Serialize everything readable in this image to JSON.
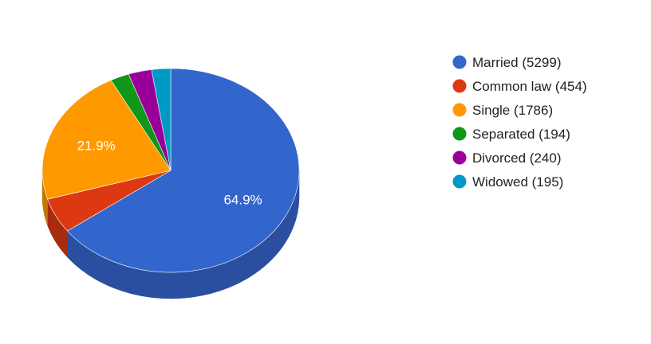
{
  "chart_data": {
    "type": "pie",
    "title": "",
    "three_d": true,
    "legend_position": "right",
    "slices": [
      {
        "name": "Married",
        "value": 5299,
        "color": "#3366cc",
        "side_color": "#2a4fa0",
        "legend_label": "Married (5299)",
        "pct_label": "64.9%"
      },
      {
        "name": "Common law",
        "value": 454,
        "color": "#dc3912",
        "side_color": "#a92c0e",
        "legend_label": "Common law (454)",
        "pct_label": ""
      },
      {
        "name": "Single",
        "value": 1786,
        "color": "#ff9900",
        "side_color": "#c47600",
        "legend_label": "Single (1786)",
        "pct_label": "21.9%"
      },
      {
        "name": "Separated",
        "value": 194,
        "color": "#109618",
        "side_color": "#0c7312",
        "legend_label": "Separated (194)",
        "pct_label": ""
      },
      {
        "name": "Divorced",
        "value": 240,
        "color": "#990099",
        "side_color": "#740074",
        "legend_label": "Divorced (240)",
        "pct_label": ""
      },
      {
        "name": "Widowed",
        "value": 195,
        "color": "#0099c6",
        "side_color": "#007598",
        "legend_label": "Widowed (195)",
        "pct_label": ""
      }
    ]
  }
}
